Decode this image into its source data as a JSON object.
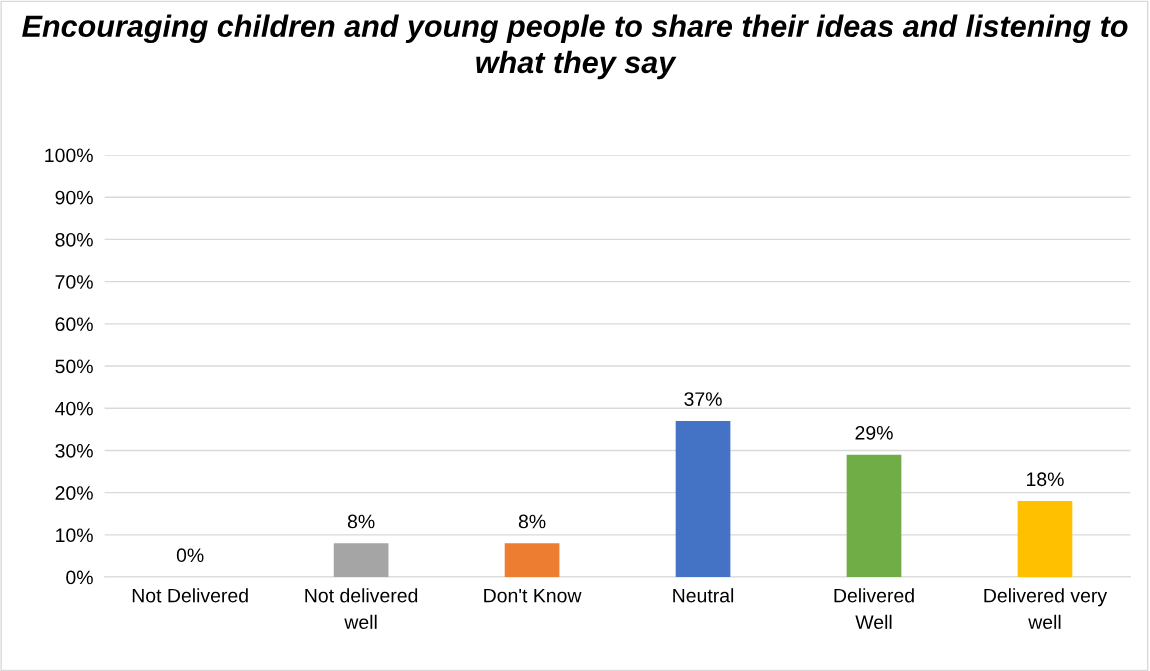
{
  "chart_data": {
    "type": "bar",
    "title": "Encouraging children and young people to share their ideas and listening to what they say",
    "categories": [
      "Not Delivered",
      "Not delivered well",
      "Don't Know",
      "Neutral",
      "Delivered Well",
      "Delivered very well"
    ],
    "values": [
      0,
      8,
      8,
      37,
      29,
      18
    ],
    "colors": [
      "#4472c4",
      "#a5a5a5",
      "#ed7d31",
      "#4472c4",
      "#70ad47",
      "#ffc000"
    ],
    "value_labels": [
      "0%",
      "8%",
      "8%",
      "37%",
      "29%",
      "18%"
    ],
    "ylim": [
      0,
      100
    ],
    "yticks": [
      {
        "value": 0,
        "label": "0%"
      },
      {
        "value": 10,
        "label": "10%"
      },
      {
        "value": 20,
        "label": "20%"
      },
      {
        "value": 30,
        "label": "30%"
      },
      {
        "value": 40,
        "label": "40%"
      },
      {
        "value": 50,
        "label": "50%"
      },
      {
        "value": 60,
        "label": "60%"
      },
      {
        "value": 70,
        "label": "70%"
      },
      {
        "value": 80,
        "label": "80%"
      },
      {
        "value": 90,
        "label": "90%"
      },
      {
        "value": 100,
        "label": "100%"
      }
    ],
    "grid": "y",
    "legend": false
  }
}
